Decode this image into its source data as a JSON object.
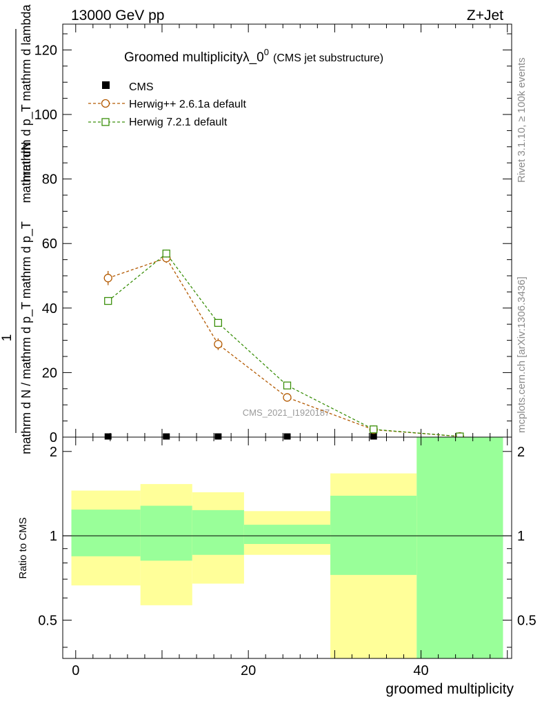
{
  "header": {
    "left": "13000 GeV pp",
    "right": "Z+Jet"
  },
  "side_labels": {
    "rivet": "Rivet 3.1.10, ≥ 100k events",
    "mcplots": "mcplots.cern.ch [arXiv:1306.3436]"
  },
  "chart_data": [
    {
      "type": "line",
      "title": "Groomed multiplicityλ_0",
      "title_sup": "0",
      "title_suffix": "(CMS jet substructure)",
      "xlabel": "",
      "ylabel_numerator": "mathrm dN",
      "ylabel_mid": "mathrm d p_T mathrm d lambda",
      "ylabel_prefix": "1",
      "ylabel_denominator": "mathrm d N / mathrm d p_T mathrm d p_T",
      "xlim": [
        -1.5,
        50.5
      ],
      "ylim": [
        0,
        128
      ],
      "yticks": [
        0,
        20,
        40,
        60,
        80,
        100,
        120
      ],
      "watermark": "CMS_2021_I1920187",
      "legend_position": "top-left",
      "bins": [
        {
          "low": 0,
          "high": 7.5
        },
        {
          "low": 7.5,
          "high": 13.5
        },
        {
          "low": 13.5,
          "high": 19.5
        },
        {
          "low": 19.5,
          "high": 29.5
        },
        {
          "low": 29.5,
          "high": 39.5
        },
        {
          "low": 39.5,
          "high": 49.5
        }
      ],
      "series": [
        {
          "name": "CMS",
          "marker": "filled-square",
          "color": "#000000",
          "x": [
            3.75,
            10.5,
            16.5,
            24.5,
            34.5,
            44.5
          ],
          "y": [
            0.1,
            0.1,
            0.1,
            0.1,
            0.1,
            0.1
          ]
        },
        {
          "name": "Herwig++ 2.6.1a default",
          "marker": "open-circle",
          "color": "#b35900",
          "x": [
            3.75,
            10.5,
            16.5,
            24.5,
            34.5,
            44.5
          ],
          "y": [
            49.3,
            55.5,
            28.8,
            12.3,
            2.3,
            0.2
          ],
          "yerr": [
            2.2,
            1.5,
            1.8,
            0.6,
            0.2,
            0.1
          ]
        },
        {
          "name": "Herwig 7.2.1 default",
          "marker": "open-square",
          "color": "#3a8f0a",
          "x": [
            3.75,
            10.5,
            16.5,
            24.5,
            34.5,
            44.5
          ],
          "y": [
            42.2,
            56.9,
            35.4,
            16.0,
            2.4,
            0.2
          ],
          "yerr": [
            0.6,
            1.2,
            0.7,
            0.4,
            0.1,
            0.1
          ]
        }
      ]
    },
    {
      "type": "area",
      "title": "",
      "xlabel": "groomed multiplicity",
      "ylabel": "Ratio to CMS",
      "xlim": [
        -1.5,
        50.5
      ],
      "ylim": [
        0.365,
        2.25
      ],
      "yscale": "log",
      "yticks": [
        0.5,
        1,
        2
      ],
      "ytick_labels": [
        "0.5",
        "1",
        "2"
      ],
      "xticks": [
        0,
        20,
        40
      ],
      "xtick_labels": [
        "0",
        "20",
        "40"
      ],
      "reference_line": 1,
      "bands": [
        {
          "low": -0.5,
          "high": 7.5,
          "green": [
            0.845,
            1.24
          ],
          "yellow": [
            0.665,
            1.45
          ]
        },
        {
          "low": 7.5,
          "high": 13.5,
          "green": [
            0.815,
            1.28
          ],
          "yellow": [
            0.565,
            1.53
          ]
        },
        {
          "low": 13.5,
          "high": 19.5,
          "green": [
            0.855,
            1.235
          ],
          "yellow": [
            0.675,
            1.43
          ]
        },
        {
          "low": 19.5,
          "high": 29.5,
          "green": [
            0.935,
            1.095
          ],
          "yellow": [
            0.855,
            1.225
          ]
        },
        {
          "low": 29.5,
          "high": 39.5,
          "green": [
            0.725,
            1.39
          ],
          "yellow": [
            0.365,
            1.67
          ]
        },
        {
          "low": 39.5,
          "high": 49.5,
          "green": [
            0.365,
            2.25
          ],
          "yellow": [
            0.365,
            2.25
          ]
        }
      ],
      "band_colors": {
        "green": "#99ff99",
        "yellow": "#ffff99"
      }
    }
  ]
}
